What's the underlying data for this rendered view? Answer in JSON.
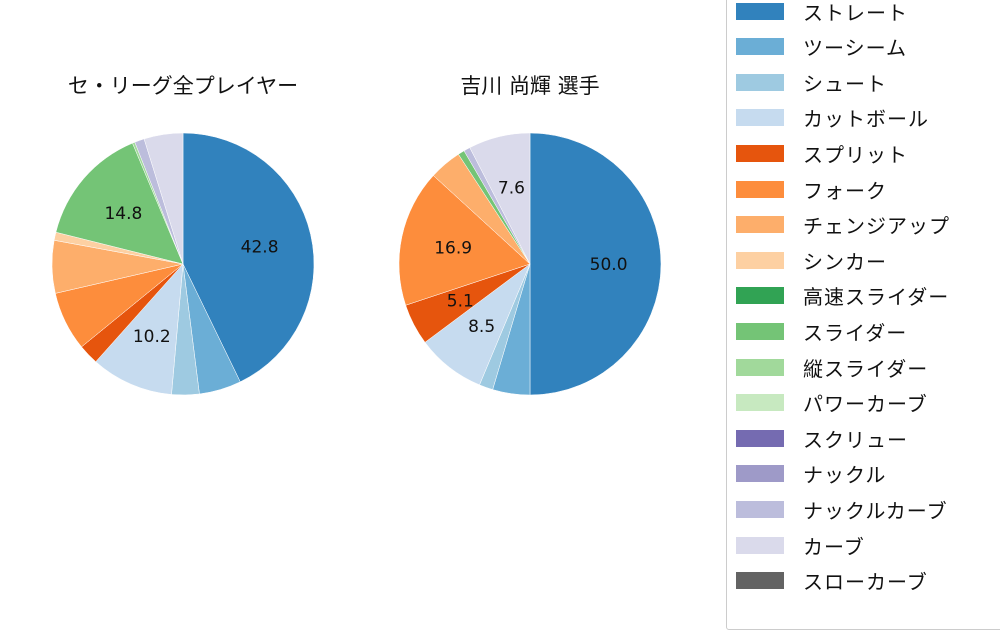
{
  "chart_data": [
    {
      "type": "pie",
      "title": "セ・リーグ全プレイヤー",
      "start_angle": 90,
      "direction": "clockwise",
      "categories": [
        "ストレート",
        "ツーシーム",
        "シュート",
        "カットボール",
        "スプリット",
        "フォーク",
        "チェンジアップ",
        "シンカー",
        "スライダー",
        "縦スライダー",
        "ナックルカーブ",
        "カーブ"
      ],
      "values": [
        42.8,
        5.2,
        3.4,
        10.2,
        2.5,
        7.3,
        6.5,
        1.0,
        14.8,
        0.3,
        1.2,
        4.8
      ],
      "labels_shown": [
        "42.8",
        "10.2",
        "14.8"
      ]
    },
    {
      "type": "pie",
      "title": "吉川 尚輝  選手",
      "start_angle": 90,
      "direction": "clockwise",
      "categories": [
        "ストレート",
        "ツーシーム",
        "シュート",
        "カットボール",
        "スプリット",
        "フォーク",
        "チェンジアップ",
        "スライダー",
        "ナックルカーブ",
        "カーブ"
      ],
      "values": [
        50.0,
        4.6,
        1.7,
        8.5,
        5.1,
        16.9,
        4.0,
        0.8,
        0.8,
        7.6
      ],
      "labels_shown": [
        "50.0",
        "8.5",
        "5.1",
        "16.9",
        "7.6"
      ]
    }
  ],
  "titles": {
    "left": "セ・リーグ全プレイヤー",
    "right": "吉川 尚輝  選手"
  },
  "colors": {
    "ストレート": "#3182bd",
    "ツーシーム": "#6baed6",
    "シュート": "#9ecae1",
    "カットボール": "#c6dbef",
    "スプリット": "#e6550d",
    "フォーク": "#fd8d3c",
    "チェンジアップ": "#fdae6b",
    "シンカー": "#fdd0a2",
    "高速スライダー": "#31a354",
    "スライダー": "#74c476",
    "縦スライダー": "#a1d99b",
    "パワーカーブ": "#c7e9c0",
    "スクリュー": "#756bb1",
    "ナックル": "#9e9ac8",
    "ナックルカーブ": "#bcbddc",
    "カーブ": "#dadaeb",
    "スローカーブ": "#636363"
  },
  "legend": [
    {
      "label": "ストレート",
      "color": "#3182bd"
    },
    {
      "label": "ツーシーム",
      "color": "#6baed6"
    },
    {
      "label": "シュート",
      "color": "#9ecae1"
    },
    {
      "label": "カットボール",
      "color": "#c6dbef"
    },
    {
      "label": "スプリット",
      "color": "#e6550d"
    },
    {
      "label": "フォーク",
      "color": "#fd8d3c"
    },
    {
      "label": "チェンジアップ",
      "color": "#fdae6b"
    },
    {
      "label": "シンカー",
      "color": "#fdd0a2"
    },
    {
      "label": "高速スライダー",
      "color": "#31a354"
    },
    {
      "label": "スライダー",
      "color": "#74c476"
    },
    {
      "label": "縦スライダー",
      "color": "#a1d99b"
    },
    {
      "label": "パワーカーブ",
      "color": "#c7e9c0"
    },
    {
      "label": "スクリュー",
      "color": "#756bb1"
    },
    {
      "label": "ナックル",
      "color": "#9e9ac8"
    },
    {
      "label": "ナックルカーブ",
      "color": "#bcbddc"
    },
    {
      "label": "カーブ",
      "color": "#dadaeb"
    },
    {
      "label": "スローカーブ",
      "color": "#636363"
    }
  ]
}
